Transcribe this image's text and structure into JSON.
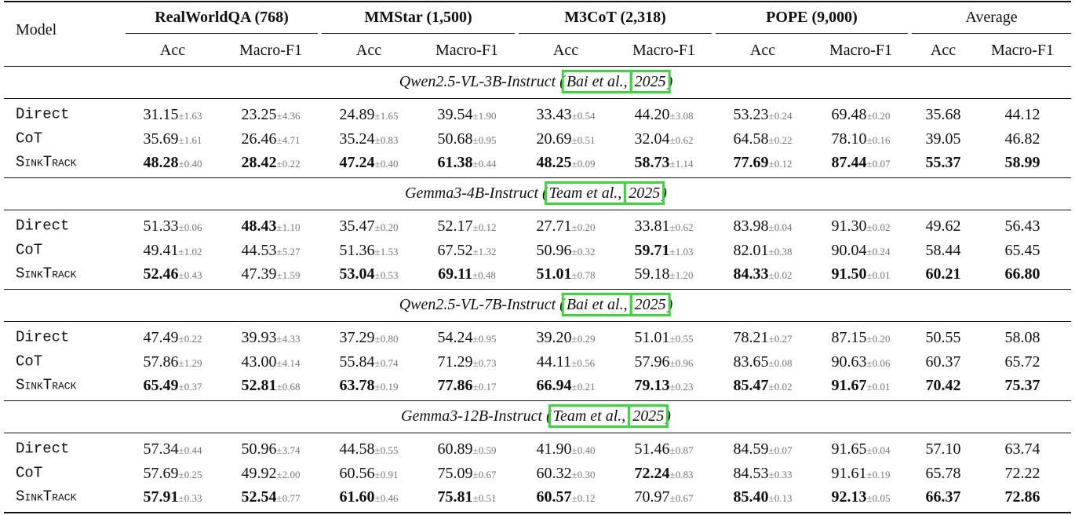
{
  "header": {
    "model": "Model",
    "groups": [
      "RealWorldQA (768)",
      "MMStar (1,500)",
      "M3CoT (2,318)",
      "POPE (9,000)",
      "Average"
    ],
    "metrics": [
      "Acc",
      "Macro-F1",
      "Acc",
      "Macro-F1",
      "Acc",
      "Macro-F1",
      "Acc",
      "Macro-F1",
      "Acc",
      "Macro-F1"
    ]
  },
  "sections": [
    {
      "title_prefix": "Qwen2.5-VL-3B-Instruct (",
      "cite_author": "Bai et al.,",
      "cite_year": "2025",
      "title_suffix": ")",
      "rows": [
        {
          "method": "Direct",
          "cells": [
            {
              "value": "31.15",
              "std": "±1.63"
            },
            {
              "value": "23.25",
              "std": "±4.36"
            },
            {
              "value": "24.89",
              "std": "±1.65"
            },
            {
              "value": "39.54",
              "std": "±1.90"
            },
            {
              "value": "33.43",
              "std": "±0.54"
            },
            {
              "value": "44.20",
              "std": "±3.08"
            },
            {
              "value": "53.23",
              "std": "±0.24"
            },
            {
              "value": "69.48",
              "std": "±0.20"
            },
            {
              "value": "35.68"
            },
            {
              "value": "44.12"
            }
          ]
        },
        {
          "method": "CoT",
          "cells": [
            {
              "value": "35.69",
              "std": "±1.61"
            },
            {
              "value": "26.46",
              "std": "±4.71"
            },
            {
              "value": "35.24",
              "std": "±0.83"
            },
            {
              "value": "50.68",
              "std": "±0.95"
            },
            {
              "value": "20.69",
              "std": "±0.51"
            },
            {
              "value": "32.04",
              "std": "±0.62"
            },
            {
              "value": "64.58",
              "std": "±0.22"
            },
            {
              "value": "78.10",
              "std": "±0.16"
            },
            {
              "value": "39.05"
            },
            {
              "value": "46.82"
            }
          ]
        },
        {
          "method": "SinkTrack",
          "smallcaps": true,
          "cells": [
            {
              "value": "48.28",
              "std": "±0.40",
              "bold": true
            },
            {
              "value": "28.42",
              "std": "±0.22",
              "bold": true
            },
            {
              "value": "47.24",
              "std": "±0.40",
              "bold": true
            },
            {
              "value": "61.38",
              "std": "±0.44",
              "bold": true
            },
            {
              "value": "48.25",
              "std": "±0.09",
              "bold": true
            },
            {
              "value": "58.73",
              "std": "±1.14",
              "bold": true
            },
            {
              "value": "77.69",
              "std": "±0.12",
              "bold": true
            },
            {
              "value": "87.44",
              "std": "±0.07",
              "bold": true
            },
            {
              "value": "55.37",
              "bold": true
            },
            {
              "value": "58.99",
              "bold": true
            }
          ]
        }
      ]
    },
    {
      "title_prefix": "Gemma3-4B-Instruct (",
      "cite_author": "Team et al.,",
      "cite_year": "2025",
      "title_suffix": ")",
      "rows": [
        {
          "method": "Direct",
          "cells": [
            {
              "value": "51.33",
              "std": "±0.06"
            },
            {
              "value": "48.43",
              "std": "±1.10",
              "bold": true
            },
            {
              "value": "35.47",
              "std": "±0.20"
            },
            {
              "value": "52.17",
              "std": "±0.12"
            },
            {
              "value": "27.71",
              "std": "±0.20"
            },
            {
              "value": "33.81",
              "std": "±0.62"
            },
            {
              "value": "83.98",
              "std": "±0.04"
            },
            {
              "value": "91.30",
              "std": "±0.02"
            },
            {
              "value": "49.62"
            },
            {
              "value": "56.43"
            }
          ]
        },
        {
          "method": "CoT",
          "cells": [
            {
              "value": "49.41",
              "std": "±1.02"
            },
            {
              "value": "44.53",
              "std": "±5.27"
            },
            {
              "value": "51.36",
              "std": "±1.53"
            },
            {
              "value": "67.52",
              "std": "±1.32"
            },
            {
              "value": "50.96",
              "std": "±0.32"
            },
            {
              "value": "59.71",
              "std": "±1.03",
              "bold": true
            },
            {
              "value": "82.01",
              "std": "±0.38"
            },
            {
              "value": "90.04",
              "std": "±0.24"
            },
            {
              "value": "58.44"
            },
            {
              "value": "65.45"
            }
          ]
        },
        {
          "method": "SinkTrack",
          "smallcaps": true,
          "cells": [
            {
              "value": "52.46",
              "std": "±0.43",
              "bold": true
            },
            {
              "value": "47.39",
              "std": "±1.59"
            },
            {
              "value": "53.04",
              "std": "±0.53",
              "bold": true
            },
            {
              "value": "69.11",
              "std": "±0.48",
              "bold": true
            },
            {
              "value": "51.01",
              "std": "±0.78",
              "bold": true
            },
            {
              "value": "59.18",
              "std": "±1.20"
            },
            {
              "value": "84.33",
              "std": "±0.02",
              "bold": true
            },
            {
              "value": "91.50",
              "std": "±0.01",
              "bold": true
            },
            {
              "value": "60.21",
              "bold": true
            },
            {
              "value": "66.80",
              "bold": true
            }
          ]
        }
      ]
    },
    {
      "title_prefix": "Qwen2.5-VL-7B-Instruct (",
      "cite_author": "Bai et al.,",
      "cite_year": "2025",
      "title_suffix": ")",
      "rows": [
        {
          "method": "Direct",
          "cells": [
            {
              "value": "47.49",
              "std": "±0.22"
            },
            {
              "value": "39.93",
              "std": "±4.33"
            },
            {
              "value": "37.29",
              "std": "±0.80"
            },
            {
              "value": "54.24",
              "std": "±0.95"
            },
            {
              "value": "39.20",
              "std": "±0.29"
            },
            {
              "value": "51.01",
              "std": "±0.55"
            },
            {
              "value": "78.21",
              "std": "±0.27"
            },
            {
              "value": "87.15",
              "std": "±0.20"
            },
            {
              "value": "50.55"
            },
            {
              "value": "58.08"
            }
          ]
        },
        {
          "method": "CoT",
          "cells": [
            {
              "value": "57.86",
              "std": "±1.29"
            },
            {
              "value": "43.00",
              "std": "±4.14"
            },
            {
              "value": "55.84",
              "std": "±0.74"
            },
            {
              "value": "71.29",
              "std": "±0.73"
            },
            {
              "value": "44.11",
              "std": "±0.56"
            },
            {
              "value": "57.96",
              "std": "±0.96"
            },
            {
              "value": "83.65",
              "std": "±0.08"
            },
            {
              "value": "90.63",
              "std": "±0.06"
            },
            {
              "value": "60.37"
            },
            {
              "value": "65.72"
            }
          ]
        },
        {
          "method": "SinkTrack",
          "smallcaps": true,
          "cells": [
            {
              "value": "65.49",
              "std": "±0.37",
              "bold": true
            },
            {
              "value": "52.81",
              "std": "±0.68",
              "bold": true
            },
            {
              "value": "63.78",
              "std": "±0.19",
              "bold": true
            },
            {
              "value": "77.86",
              "std": "±0.17",
              "bold": true
            },
            {
              "value": "66.94",
              "std": "±0.21",
              "bold": true
            },
            {
              "value": "79.13",
              "std": "±0.23",
              "bold": true
            },
            {
              "value": "85.47",
              "std": "±0.02",
              "bold": true
            },
            {
              "value": "91.67",
              "std": "±0.01",
              "bold": true
            },
            {
              "value": "70.42",
              "bold": true
            },
            {
              "value": "75.37",
              "bold": true
            }
          ]
        }
      ]
    },
    {
      "title_prefix": "Gemma3-12B-Instruct (",
      "cite_author": "Team et al.,",
      "cite_year": "2025",
      "title_suffix": ")",
      "rows": [
        {
          "method": "Direct",
          "cells": [
            {
              "value": "57.34",
              "std": "±0.44"
            },
            {
              "value": "50.96",
              "std": "±3.74"
            },
            {
              "value": "44.58",
              "std": "±0.55"
            },
            {
              "value": "60.89",
              "std": "±0.59"
            },
            {
              "value": "41.90",
              "std": "±0.40"
            },
            {
              "value": "51.46",
              "std": "±0.87"
            },
            {
              "value": "84.59",
              "std": "±0.07"
            },
            {
              "value": "91.65",
              "std": "±0.04"
            },
            {
              "value": "57.10"
            },
            {
              "value": "63.74"
            }
          ]
        },
        {
          "method": "CoT",
          "cells": [
            {
              "value": "57.69",
              "std": "±0.25"
            },
            {
              "value": "49.92",
              "std": "±2.00"
            },
            {
              "value": "60.56",
              "std": "±0.91"
            },
            {
              "value": "75.09",
              "std": "±0.67"
            },
            {
              "value": "60.32",
              "std": "±0.30"
            },
            {
              "value": "72.24",
              "std": "±0.83",
              "bold": true
            },
            {
              "value": "84.53",
              "std": "±0.33"
            },
            {
              "value": "91.61",
              "std": "±0.19"
            },
            {
              "value": "65.78"
            },
            {
              "value": "72.22"
            }
          ]
        },
        {
          "method": "SinkTrack",
          "smallcaps": true,
          "cells": [
            {
              "value": "57.91",
              "std": "±0.33",
              "bold": true
            },
            {
              "value": "52.54",
              "std": "±0.77",
              "bold": true
            },
            {
              "value": "61.60",
              "std": "±0.46",
              "bold": true
            },
            {
              "value": "75.81",
              "std": "±0.51",
              "bold": true
            },
            {
              "value": "60.57",
              "std": "±0.12",
              "bold": true
            },
            {
              "value": "70.97",
              "std": "±0.67"
            },
            {
              "value": "85.40",
              "std": "±0.13",
              "bold": true
            },
            {
              "value": "92.13",
              "std": "±0.05",
              "bold": true
            },
            {
              "value": "66.37",
              "bold": true
            },
            {
              "value": "72.86",
              "bold": true
            }
          ]
        }
      ]
    }
  ]
}
